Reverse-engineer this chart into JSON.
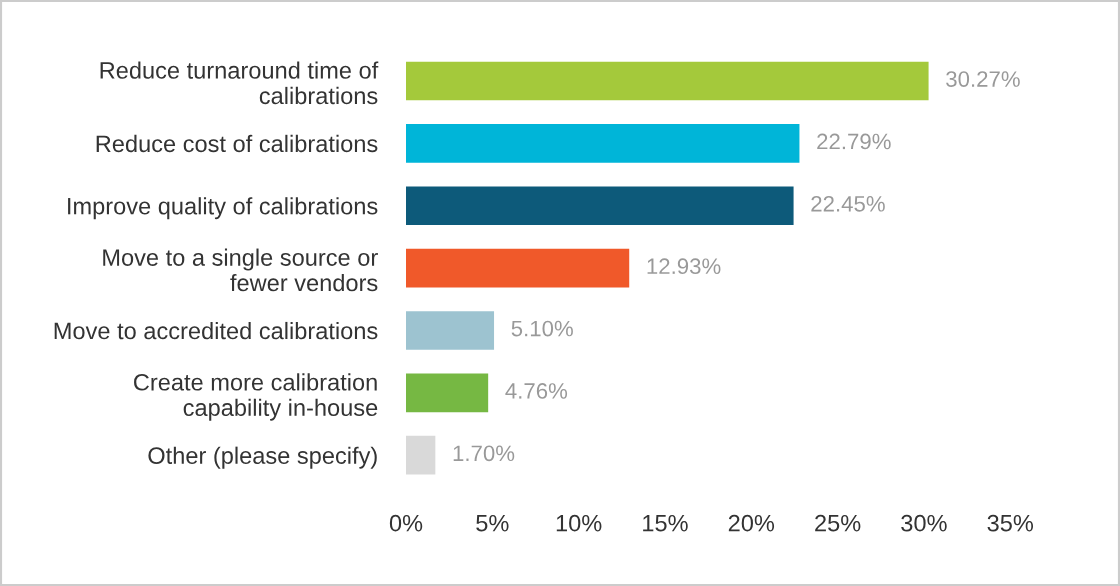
{
  "chart_data": {
    "type": "bar",
    "orientation": "horizontal",
    "categories": [
      "Reduce turnaround time of\ncalibrations",
      "Reduce cost of calibrations",
      "Improve quality of calibrations",
      "Move to a single source or\nfewer vendors",
      "Move to accredited calibrations",
      "Create more calibration\ncapability in-house",
      "Other (please specify)"
    ],
    "values": [
      30.27,
      22.79,
      22.45,
      12.93,
      5.1,
      4.76,
      1.7
    ],
    "colors": [
      "#a4c93b",
      "#00b5d8",
      "#0d5a7a",
      "#f0592a",
      "#9dc3d0",
      "#76b843",
      "#d9d9d9"
    ],
    "value_labels": [
      "30.27%",
      "22.79%",
      "22.45%",
      "12.93%",
      "5.10%",
      "4.76%",
      "1.70%"
    ],
    "xlim": [
      0,
      35
    ],
    "xticks": [
      {
        "value": 0,
        "label": "0%"
      },
      {
        "value": 5,
        "label": "5%"
      },
      {
        "value": 10,
        "label": "10%"
      },
      {
        "value": 15,
        "label": "15%"
      },
      {
        "value": 20,
        "label": "20%"
      },
      {
        "value": 25,
        "label": "25%"
      },
      {
        "value": 30,
        "label": "30%"
      },
      {
        "value": 35,
        "label": "35%"
      }
    ],
    "grid": false,
    "legend": false
  }
}
